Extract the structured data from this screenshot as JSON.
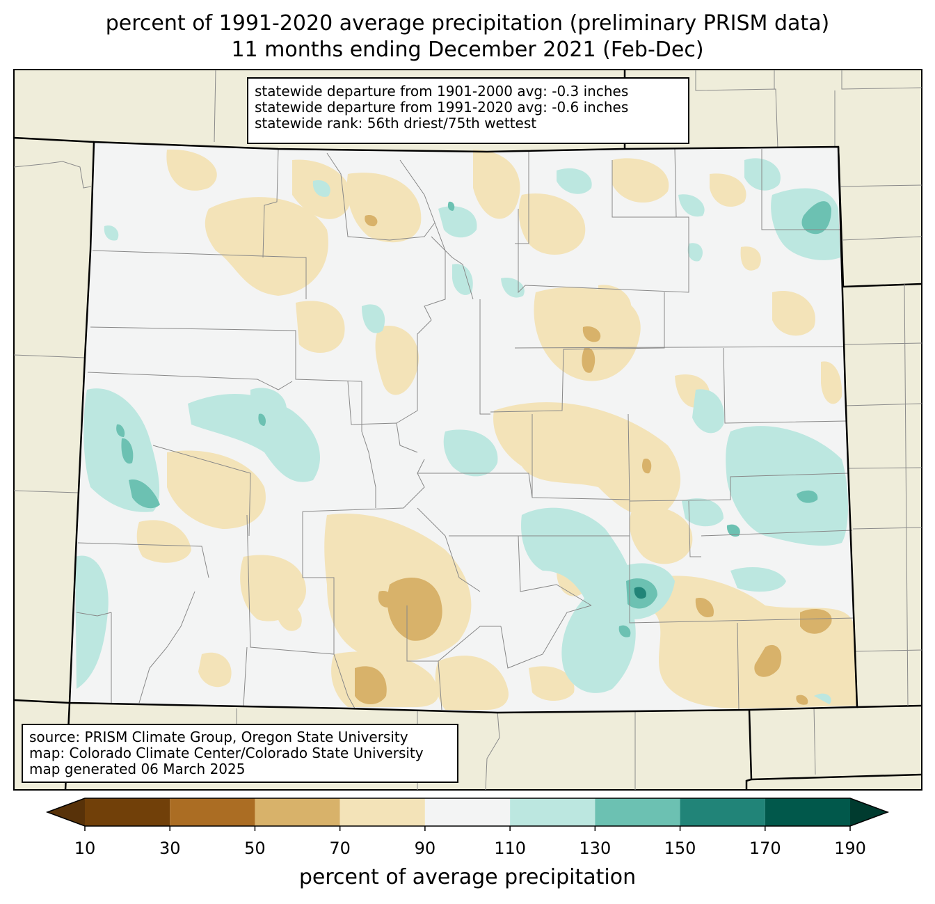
{
  "title": {
    "line1": "percent of 1991-2020 average precipitation (preliminary PRISM data)",
    "line2": "11 months ending December 2021 (Feb-Dec)"
  },
  "stats": {
    "line1": "statewide departure from 1901-2000 avg: -0.3 inches",
    "line2": "statewide departure from 1991-2020 avg: -0.6 inches",
    "line3": "statewide rank: 56th driest/75th wettest"
  },
  "source": {
    "line1": "source: PRISM Climate Group, Oregon State University",
    "line2": "map: Colorado Climate Center/Colorado State University",
    "line3": "map generated 06 March 2025"
  },
  "colorbar": {
    "label": "percent of average precipitation",
    "ticks": [
      "10",
      "30",
      "50",
      "70",
      "90",
      "110",
      "130",
      "150",
      "170",
      "190"
    ],
    "bins": [
      {
        "from": 10,
        "to": 30,
        "color": "#714009"
      },
      {
        "from": 30,
        "to": 50,
        "color": "#ab6d23"
      },
      {
        "from": 50,
        "to": 70,
        "color": "#d8b26a"
      },
      {
        "from": 70,
        "to": 90,
        "color": "#f3e3b8"
      },
      {
        "from": 90,
        "to": 110,
        "color": "#f3f4f4"
      },
      {
        "from": 110,
        "to": 130,
        "color": "#bce7e0"
      },
      {
        "from": 130,
        "to": 150,
        "color": "#6cc1b2"
      },
      {
        "from": 150,
        "to": 170,
        "color": "#218478"
      },
      {
        "from": 170,
        "to": 190,
        "color": "#01584b"
      }
    ],
    "under_color": "#583209",
    "over_color": "#003b2f"
  },
  "colors": {
    "background_land": "#efedda",
    "state_fill": "#f3f4f4",
    "county_lines": "#888888",
    "state_border": "#000000"
  }
}
